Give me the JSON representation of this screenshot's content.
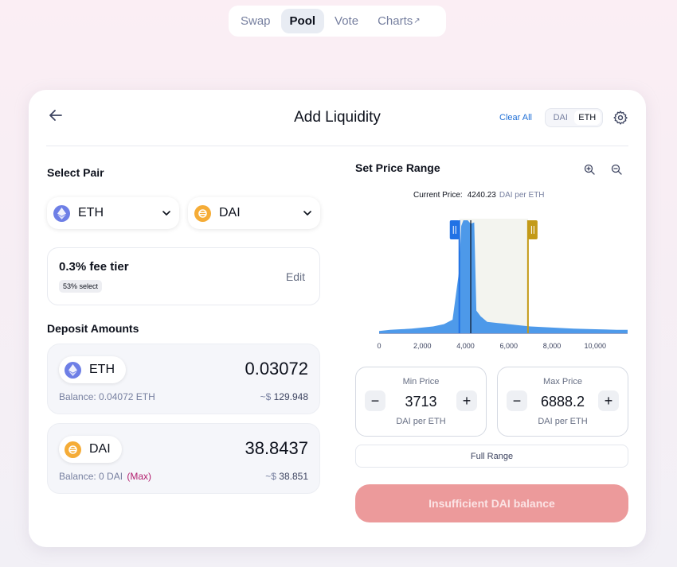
{
  "nav": {
    "items": [
      {
        "label": "Swap",
        "active": false
      },
      {
        "label": "Pool",
        "active": true
      },
      {
        "label": "Vote",
        "active": false
      },
      {
        "label": "Charts",
        "active": false,
        "external_mark": "↗"
      }
    ]
  },
  "header": {
    "title": "Add Liquidity",
    "clear_all": "Clear All",
    "toggle": {
      "option_a": "DAI",
      "option_b": "ETH",
      "selected": "ETH"
    }
  },
  "select_pair": {
    "label": "Select Pair",
    "token_a": {
      "symbol": "ETH",
      "icon": "eth-icon"
    },
    "token_b": {
      "symbol": "DAI",
      "icon": "dai-icon"
    }
  },
  "fee": {
    "title": "0.3% fee tier",
    "badge": "53% select",
    "edit_label": "Edit"
  },
  "deposit": {
    "label": "Deposit Amounts",
    "eth": {
      "symbol": "ETH",
      "amount": "0.03072",
      "balance": "Balance: 0.04072 ETH",
      "usd_prefix": "~$",
      "usd": "129.948"
    },
    "dai": {
      "symbol": "DAI",
      "amount": "38.8437",
      "balance": "Balance: 0 DAI",
      "max_label": "(Max)",
      "usd_prefix": "~$",
      "usd": "38.851"
    }
  },
  "price_range": {
    "label": "Set Price Range",
    "current_price_label": "Current Price:",
    "current_price": "4240.23",
    "current_price_unit": "DAI per ETH",
    "min": {
      "label": "Min Price",
      "value": "3713",
      "unit": "DAI per ETH",
      "minus": "−",
      "plus": "+"
    },
    "max": {
      "label": "Max Price",
      "value": "6888.2",
      "unit": "DAI per ETH",
      "minus": "−",
      "plus": "+"
    },
    "full_range": "Full Range"
  },
  "chart_data": {
    "type": "area",
    "x_ticks": [
      "0",
      "2,000",
      "4,000",
      "6,000",
      "8,000",
      "10,000"
    ],
    "xlim": [
      0,
      11500
    ],
    "current_price": 4240.23,
    "range_min": 3713,
    "range_max": 6888.2,
    "liquidity": [
      [
        0,
        0.02
      ],
      [
        500,
        0.03
      ],
      [
        1000,
        0.035
      ],
      [
        1500,
        0.04
      ],
      [
        2000,
        0.05
      ],
      [
        2500,
        0.06
      ],
      [
        3000,
        0.08
      ],
      [
        3400,
        0.12
      ],
      [
        3700,
        0.55
      ],
      [
        3800,
        0.95
      ],
      [
        3900,
        1.0
      ],
      [
        4000,
        1.0
      ],
      [
        4100,
        1.0
      ],
      [
        4240,
        0.97
      ],
      [
        4400,
        0.98
      ],
      [
        4500,
        0.2
      ],
      [
        4700,
        0.15
      ],
      [
        5000,
        0.1
      ],
      [
        5500,
        0.09
      ],
      [
        6000,
        0.08
      ],
      [
        6500,
        0.07
      ],
      [
        7000,
        0.06
      ],
      [
        8000,
        0.05
      ],
      [
        9000,
        0.04
      ],
      [
        10000,
        0.035
      ],
      [
        11000,
        0.03
      ],
      [
        11500,
        0.03
      ]
    ],
    "colors": {
      "area": "#3b8fe8",
      "min_handle": "#2172e5",
      "max_handle": "#c39a18"
    }
  },
  "submit": {
    "label": "Insufficient DAI balance"
  }
}
